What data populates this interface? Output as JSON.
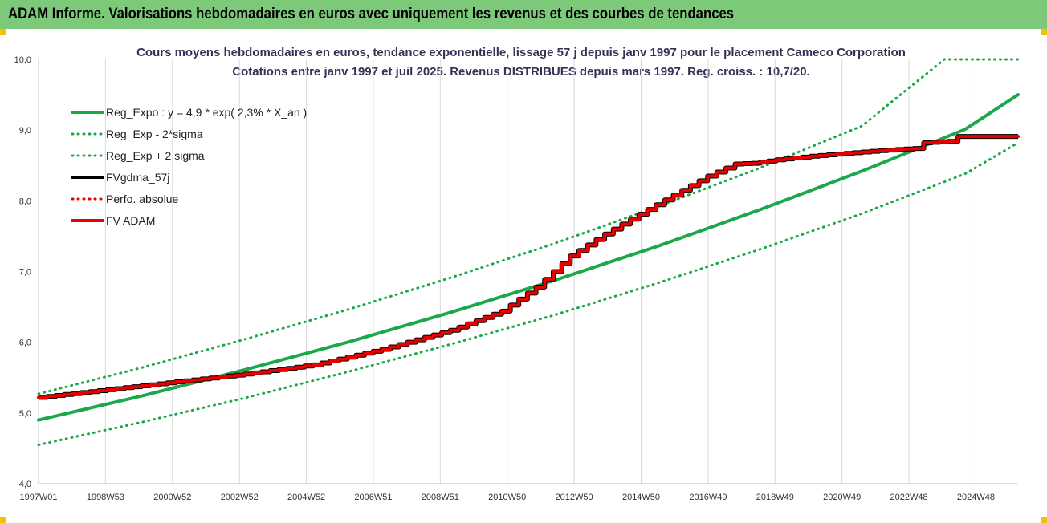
{
  "header": {
    "title": "ADAM Informe. Valorisations hebdomadaires en euros avec uniquement les revenus et des courbes de tendances"
  },
  "colors": {
    "header_bg": "#7dc97a",
    "green": "#1aa84a",
    "red": "#e60000",
    "black": "#000000",
    "corner": "#f2c200"
  },
  "chart_data": {
    "type": "line",
    "title_line1": "Cours moyens hebdomadaires en euros, tendance exponentielle, lissage 57 j depuis janv 1997 pour le placement Cameco Corporation",
    "title_line2": "Cotations entre janv 1997 et juil 2025. Revenus DISTRIBUES depuis mars 1997. Reg. croiss. : 10,7/20.",
    "xlabel": "",
    "ylabel": "",
    "ylim": [
      4.0,
      10.0
    ],
    "yticks": [
      "4,0",
      "5,0",
      "6,0",
      "7,0",
      "8,0",
      "9,0",
      "10,0"
    ],
    "xtick_labels": [
      "1997W01",
      "1998W53",
      "2000W52",
      "2002W52",
      "2004W52",
      "2006W51",
      "2008W51",
      "2010W50",
      "2012W50",
      "2014W50",
      "2016W49",
      "2018W49",
      "2020W49",
      "2022W48",
      "2024W48"
    ],
    "xlim": [
      1997.0,
      2025.55
    ],
    "grid": "vertical",
    "legend_position": "top-left",
    "legend": [
      {
        "label": "Reg_Expo : y = 4,9 * exp( 2,3% *  X_an )",
        "color": "#1aa84a",
        "style": "solid"
      },
      {
        "label": "Reg_Exp - 2*sigma",
        "color": "#1aa84a",
        "style": "dotted"
      },
      {
        "label": "Reg_Exp + 2 sigma",
        "color": "#1aa84a",
        "style": "dotted"
      },
      {
        "label": "FVgdma_57j",
        "color": "#000000",
        "style": "solid"
      },
      {
        "label": "Perfo. absolue",
        "color": "#e60000",
        "style": "dotted"
      },
      {
        "label": "FV ADAM",
        "color": "#e60000",
        "style": "solid"
      }
    ],
    "series": [
      {
        "name": "Reg_Expo : y = 4,9 * exp( 2,3% *  X_an )",
        "x": [
          1997.0,
          2000.0,
          2003.0,
          2006.0,
          2009.0,
          2012.0,
          2015.0,
          2018.0,
          2021.0,
          2024.0,
          2025.55
        ],
        "values": [
          4.9,
          5.24,
          5.61,
          6.0,
          6.42,
          6.87,
          7.35,
          7.87,
          8.42,
          9.01,
          9.5
        ]
      },
      {
        "name": "Reg_Exp - 2*sigma",
        "x": [
          1997.0,
          2000.0,
          2003.0,
          2006.0,
          2009.0,
          2012.0,
          2015.0,
          2018.0,
          2021.0,
          2024.0,
          2025.55
        ],
        "values": [
          4.55,
          4.87,
          5.21,
          5.58,
          5.97,
          6.38,
          6.83,
          7.31,
          7.82,
          8.38,
          8.82
        ]
      },
      {
        "name": "Reg_Exp + 2 sigma",
        "x": [
          1997.0,
          2000.0,
          2003.0,
          2006.0,
          2009.0,
          2012.0,
          2015.0,
          2018.0,
          2021.0,
          2023.4,
          2025.55
        ],
        "values": [
          5.27,
          5.64,
          6.04,
          6.46,
          6.91,
          7.39,
          7.91,
          8.46,
          9.06,
          10.0,
          10.0
        ]
      },
      {
        "name": "FV ADAM",
        "x": [
          1997.0,
          1999.0,
          2001.0,
          2003.0,
          2005.0,
          2007.0,
          2009.0,
          2010.5,
          2011.5,
          2012.5,
          2013.5,
          2014.5,
          2015.5,
          2016.5,
          2017.3,
          2017.8,
          2018.5,
          2019.5,
          2020.5,
          2021.5,
          2022.5,
          2022.8,
          2023.5,
          2023.8,
          2025.55
        ],
        "values": [
          5.22,
          5.33,
          5.44,
          5.55,
          5.68,
          5.9,
          6.17,
          6.44,
          6.78,
          7.22,
          7.53,
          7.81,
          8.08,
          8.35,
          8.52,
          8.53,
          8.58,
          8.63,
          8.67,
          8.71,
          8.74,
          8.82,
          8.84,
          8.91,
          8.91
        ]
      }
    ]
  }
}
